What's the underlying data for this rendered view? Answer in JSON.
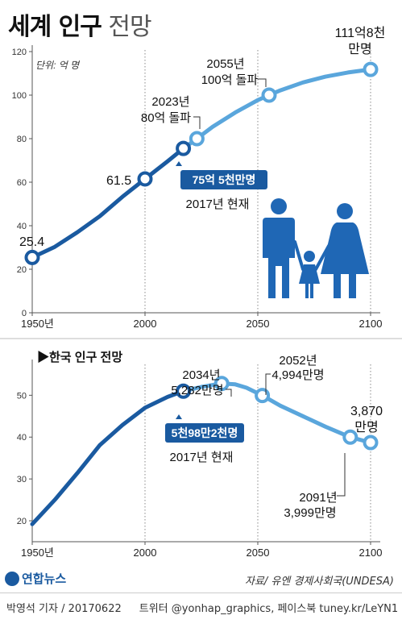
{
  "title": {
    "bold": "세계 인구",
    "light": "전망"
  },
  "chart_data": [
    {
      "type": "line",
      "title": "세계 인구 전망",
      "unit_label": "단위: 억 명",
      "xlim": [
        1950,
        2100
      ],
      "ylim": [
        0,
        120
      ],
      "xticks": [
        1950,
        2000,
        2050,
        2100
      ],
      "xtick_labels": [
        "1950년",
        "2000",
        "2050",
        "2100"
      ],
      "yticks": [
        0,
        20,
        40,
        60,
        80,
        100,
        120
      ],
      "grid": false,
      "series": [
        {
          "role": "actual",
          "color": "#1a5aa0",
          "x": [
            1950,
            1960,
            1970,
            1980,
            1990,
            2000,
            2010,
            2017
          ],
          "y": [
            25.4,
            30.3,
            37.0,
            44.4,
            53.3,
            61.5,
            69.6,
            75.5
          ]
        },
        {
          "role": "projection",
          "color": "#5aa6dc",
          "x": [
            2017,
            2023,
            2030,
            2040,
            2050,
            2055,
            2060,
            2070,
            2080,
            2090,
            2100
          ],
          "y": [
            75.5,
            80.0,
            85.5,
            92.0,
            97.7,
            100.0,
            102.2,
            105.8,
            108.5,
            110.4,
            111.8
          ]
        }
      ],
      "markers": [
        {
          "x": 1950,
          "y": 25.4,
          "color": "#1a5aa0"
        },
        {
          "x": 2000,
          "y": 61.5,
          "color": "#1a5aa0"
        },
        {
          "x": 2017,
          "y": 75.5,
          "color": "#1a5aa0"
        },
        {
          "x": 2023,
          "y": 80.0,
          "color": "#5aa6dc"
        },
        {
          "x": 2055,
          "y": 100.0,
          "color": "#5aa6dc"
        },
        {
          "x": 2100,
          "y": 111.8,
          "color": "#5aa6dc"
        }
      ],
      "annotations": {
        "v1950": "25.4",
        "v2000": "61.5",
        "v2023": [
          "2023년",
          "80억 돌파"
        ],
        "v2055": [
          "2055년",
          "100억 돌파"
        ],
        "v2100": [
          "111억8천",
          "만명"
        ],
        "v2017_box": "75억 5천만명",
        "v2017_sub": "2017년 현재"
      }
    },
    {
      "type": "line",
      "title": "▶한국 인구 전망",
      "xlim": [
        1950,
        2100
      ],
      "ylim": [
        15,
        57
      ],
      "xticks": [
        1950,
        2000,
        2050,
        2100
      ],
      "xtick_labels": [
        "1950년",
        "2000",
        "2050",
        "2100"
      ],
      "yticks": [
        20,
        30,
        40,
        50
      ],
      "grid": false,
      "series": [
        {
          "role": "actual",
          "color": "#1a5aa0",
          "x": [
            1950,
            1960,
            1970,
            1980,
            1990,
            2000,
            2010,
            2017
          ],
          "y": [
            19.2,
            25.0,
            31.4,
            38.1,
            42.9,
            47.0,
            49.6,
            50.98
          ]
        },
        {
          "role": "projection",
          "color": "#5aa6dc",
          "x": [
            2017,
            2025,
            2034,
            2040,
            2045,
            2052,
            2060,
            2070,
            2080,
            2091,
            2100
          ],
          "y": [
            50.98,
            52.0,
            52.82,
            52.6,
            51.8,
            49.94,
            47.5,
            45.0,
            42.5,
            39.99,
            38.7
          ]
        }
      ],
      "markers": [
        {
          "x": 2017,
          "y": 50.98,
          "color": "#1a5aa0"
        },
        {
          "x": 2034,
          "y": 52.82,
          "color": "#5aa6dc"
        },
        {
          "x": 2052,
          "y": 49.94,
          "color": "#5aa6dc"
        },
        {
          "x": 2091,
          "y": 39.99,
          "color": "#5aa6dc"
        },
        {
          "x": 2100,
          "y": 38.7,
          "color": "#5aa6dc"
        }
      ],
      "annotations": {
        "v2034": [
          "2034년",
          "5,282만명"
        ],
        "v2052": [
          "2052년",
          "4,994만명"
        ],
        "v2091": [
          "2091년",
          "3,999만명"
        ],
        "v2100": [
          "3,870",
          "만명"
        ],
        "v2017_box": "5천98만2천명",
        "v2017_sub": "2017년 현재"
      }
    }
  ],
  "footer": {
    "logo": "연합뉴스",
    "source": "자료/ 유엔 경제사회국(UNDESA)",
    "reporter": "박영석 기자 / 20170622",
    "twitter": "트위터 @yonhap_graphics, 페이스북 tuney.kr/LeYN1"
  },
  "colors": {
    "dark_blue": "#1a5aa0",
    "light_blue": "#5aa6dc",
    "people": "#1f67b5"
  }
}
